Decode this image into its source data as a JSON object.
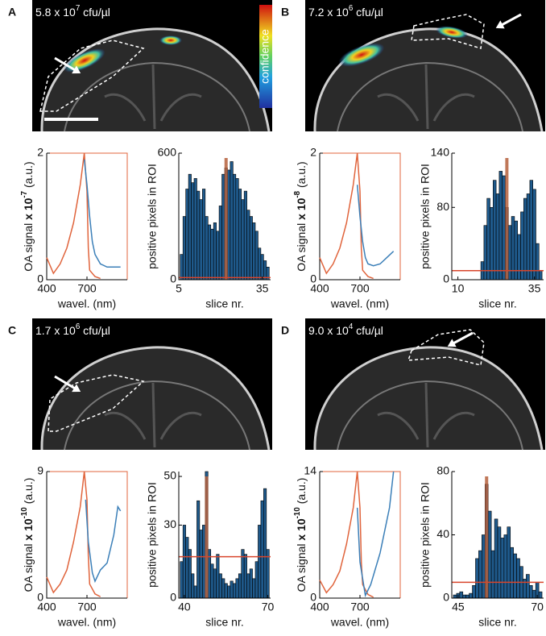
{
  "panels": [
    {
      "letter": "A",
      "title": [
        "5.8 x 10",
        "7",
        " cfu/µl"
      ],
      "ylabel": [
        "OA signal ",
        "x 10",
        "-7",
        " (a.u.)"
      ]
    },
    {
      "letter": "B",
      "title": [
        "7.2 x 10",
        "6",
        " cfu/µl"
      ],
      "ylabel": [
        "OA signal ",
        "x 10",
        "-8",
        " (a.u.)"
      ]
    },
    {
      "letter": "C",
      "title": [
        "1.7 x 10",
        "6",
        " cfu/µl"
      ],
      "ylabel": [
        "OA signal ",
        "x 10",
        "-10",
        " (a.u.)"
      ]
    },
    {
      "letter": "D",
      "title": [
        "9.0 x 10",
        "4",
        " cfu/µl"
      ],
      "ylabel": [
        "OA signal ",
        "x 10",
        "-10",
        " (a.u.)"
      ]
    }
  ],
  "colorbar_label": "confidence",
  "chart_data": [
    {
      "type": "line",
      "xlabel": "wavel. (nm)",
      "xlim": [
        400,
        1000
      ],
      "xticks": [
        400,
        700
      ],
      "ylim": [
        0,
        2
      ],
      "yticks": [
        0,
        2
      ],
      "series": [
        {
          "color": "#e0643c",
          "x": [
            400,
            450,
            500,
            550,
            600,
            650,
            680,
            700,
            710,
            720,
            760,
            800
          ],
          "values": [
            0.35,
            0.1,
            0.25,
            0.5,
            0.9,
            1.5,
            2.0,
            1.4,
            0.5,
            0.15,
            0.05,
            0.02
          ]
        },
        {
          "color": "#3b7fb8",
          "x": [
            680,
            700,
            720,
            740,
            760,
            800,
            850,
            900,
            950
          ],
          "values": [
            1.9,
            1.5,
            1.0,
            0.6,
            0.4,
            0.25,
            0.2,
            0.2,
            0.2
          ]
        }
      ]
    },
    {
      "type": "bar",
      "ylabel": "positive pixels in ROI",
      "xlabel": "slice nr.",
      "xlim": [
        5,
        38
      ],
      "xticks": [
        5,
        35
      ],
      "ylim": [
        0,
        600
      ],
      "yticks": [
        0,
        600
      ],
      "threshold": 10,
      "marker": 22,
      "x": [
        6,
        7,
        8,
        9,
        10,
        11,
        12,
        13,
        14,
        15,
        16,
        17,
        18,
        19,
        20,
        21,
        22,
        23,
        24,
        25,
        26,
        27,
        28,
        29,
        30,
        31,
        32,
        33,
        34,
        35,
        36,
        37
      ],
      "values": [
        120,
        300,
        430,
        500,
        460,
        480,
        420,
        380,
        430,
        300,
        260,
        240,
        270,
        230,
        350,
        500,
        530,
        520,
        560,
        500,
        480,
        430,
        380,
        420,
        330,
        300,
        270,
        230,
        150,
        120,
        90,
        60
      ]
    },
    {
      "type": "line",
      "xlabel": "wavel. (nm)",
      "xlim": [
        400,
        1000
      ],
      "xticks": [
        400,
        700
      ],
      "ylim": [
        0,
        2
      ],
      "yticks": [
        0,
        2
      ],
      "series": [
        {
          "color": "#e0643c",
          "x": [
            400,
            450,
            500,
            550,
            600,
            650,
            680,
            700,
            710,
            720,
            760,
            800
          ],
          "values": [
            0.35,
            0.1,
            0.25,
            0.5,
            0.9,
            1.5,
            2.0,
            1.4,
            0.5,
            0.15,
            0.05,
            0.02
          ]
        },
        {
          "color": "#3b7fb8",
          "x": [
            680,
            700,
            720,
            740,
            760,
            800,
            850,
            900,
            950
          ],
          "values": [
            1.5,
            1.0,
            0.6,
            0.35,
            0.25,
            0.22,
            0.25,
            0.35,
            0.45
          ]
        }
      ]
    },
    {
      "type": "bar",
      "ylabel": "positive pixels in ROI",
      "xlabel": "slice nr.",
      "xlim": [
        8,
        38
      ],
      "xticks": [
        10,
        35
      ],
      "ylim": [
        0,
        140
      ],
      "yticks": [
        0,
        80,
        140
      ],
      "threshold": 10,
      "marker": 26,
      "x": [
        18,
        19,
        20,
        21,
        22,
        23,
        24,
        25,
        26,
        27,
        28,
        29,
        30,
        31,
        32,
        33,
        34,
        35,
        36,
        37
      ],
      "values": [
        20,
        60,
        90,
        80,
        110,
        95,
        120,
        115,
        80,
        60,
        70,
        65,
        50,
        75,
        90,
        95,
        110,
        100,
        40,
        10
      ]
    },
    {
      "type": "line",
      "xlabel": "wavel. (nm)",
      "xlim": [
        400,
        1000
      ],
      "xticks": [
        400,
        700
      ],
      "ylim": [
        0,
        9
      ],
      "yticks": [
        0,
        9
      ],
      "series": [
        {
          "color": "#e0643c",
          "x": [
            400,
            450,
            500,
            550,
            600,
            650,
            680,
            700,
            710,
            720,
            760,
            800
          ],
          "values": [
            1.5,
            0.4,
            1.0,
            2.0,
            4.0,
            6.5,
            9.0,
            7.0,
            3.0,
            1.0,
            0.3,
            0.1
          ]
        },
        {
          "color": "#3b7fb8",
          "x": [
            690,
            710,
            740,
            760,
            800,
            850,
            900,
            930,
            950
          ],
          "values": [
            7.0,
            4.0,
            1.8,
            1.2,
            2.0,
            2.5,
            4.5,
            6.5,
            6.2
          ]
        }
      ]
    },
    {
      "type": "bar",
      "ylabel": "positive pixels in ROI",
      "xlabel": "slice nr.",
      "xlim": [
        38,
        71
      ],
      "xticks": [
        40,
        70
      ],
      "ylim": [
        0,
        52
      ],
      "yticks": [
        0,
        30,
        50
      ],
      "threshold": 17,
      "marker": 48,
      "x": [
        39,
        40,
        41,
        42,
        43,
        44,
        45,
        46,
        47,
        48,
        49,
        50,
        51,
        52,
        53,
        54,
        55,
        56,
        57,
        58,
        59,
        60,
        61,
        62,
        63,
        64,
        65,
        66,
        67,
        68,
        69,
        70
      ],
      "values": [
        15,
        30,
        25,
        20,
        10,
        5,
        40,
        28,
        30,
        52,
        20,
        14,
        12,
        18,
        10,
        8,
        6,
        5,
        7,
        6,
        8,
        10,
        20,
        18,
        10,
        12,
        8,
        15,
        30,
        40,
        45,
        20
      ]
    },
    {
      "type": "line",
      "xlabel": "wavel. (nm)",
      "xlim": [
        400,
        1000
      ],
      "xticks": [
        400,
        700
      ],
      "ylim": [
        0,
        14
      ],
      "yticks": [
        0,
        14
      ],
      "series": [
        {
          "color": "#e0643c",
          "x": [
            400,
            450,
            500,
            550,
            600,
            650,
            680,
            700,
            710,
            720,
            760,
            800
          ],
          "values": [
            2.0,
            0.6,
            1.5,
            3.0,
            6.0,
            10.0,
            14.0,
            10.0,
            4.0,
            1.5,
            0.4,
            0.1
          ]
        },
        {
          "color": "#3b7fb8",
          "x": [
            680,
            700,
            740,
            780,
            850,
            920,
            950
          ],
          "values": [
            10.0,
            4.0,
            0.3,
            1.5,
            5.0,
            10.0,
            14.0
          ]
        }
      ]
    },
    {
      "type": "bar",
      "ylabel": "positive pixels in ROI",
      "xlabel": "slice nr.",
      "xlim": [
        43,
        72
      ],
      "xticks": [
        45,
        70
      ],
      "ylim": [
        0,
        80
      ],
      "yticks": [
        0,
        40,
        80
      ],
      "threshold": 10,
      "marker": 54,
      "x": [
        44,
        45,
        46,
        47,
        48,
        49,
        50,
        51,
        52,
        53,
        54,
        55,
        56,
        57,
        58,
        59,
        60,
        61,
        62,
        63,
        64,
        65,
        66,
        67,
        68,
        69,
        70,
        71
      ],
      "values": [
        2,
        3,
        4,
        2,
        2,
        3,
        8,
        25,
        30,
        40,
        72,
        55,
        30,
        50,
        45,
        38,
        40,
        45,
        32,
        28,
        25,
        20,
        12,
        15,
        8,
        5,
        10,
        4
      ]
    }
  ]
}
